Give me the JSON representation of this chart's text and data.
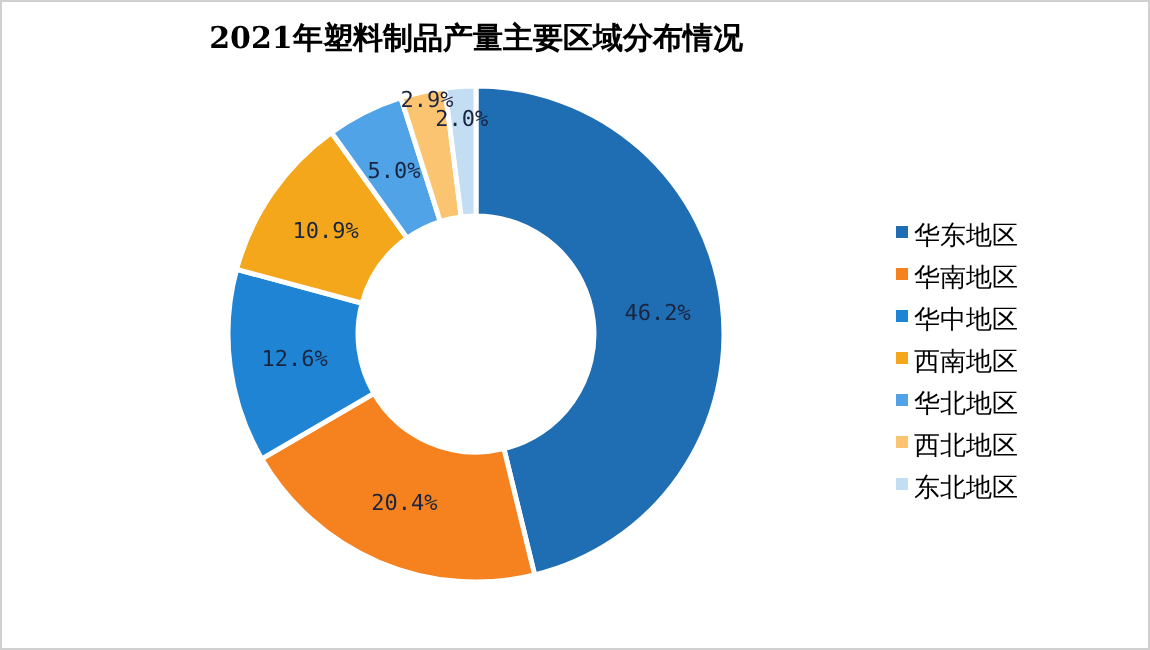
{
  "chart_data": {
    "type": "donut",
    "title": "2021年塑料制品产量主要区域分布情况",
    "categories": [
      "华东地区",
      "华南地区",
      "华中地区",
      "西南地区",
      "华北地区",
      "西北地区",
      "东北地区"
    ],
    "values": [
      46.2,
      20.4,
      12.6,
      10.9,
      5.0,
      2.9,
      2.0
    ],
    "value_labels": [
      "46.2%",
      "20.4%",
      "12.6%",
      "10.9%",
      "5.0%",
      "2.9%",
      "2.0%"
    ],
    "colors": [
      "#1f6db3",
      "#f5811f",
      "#1f84d4",
      "#f5a71c",
      "#4fa3e6",
      "#fbc470",
      "#c3ddf3"
    ],
    "legend": "right"
  }
}
